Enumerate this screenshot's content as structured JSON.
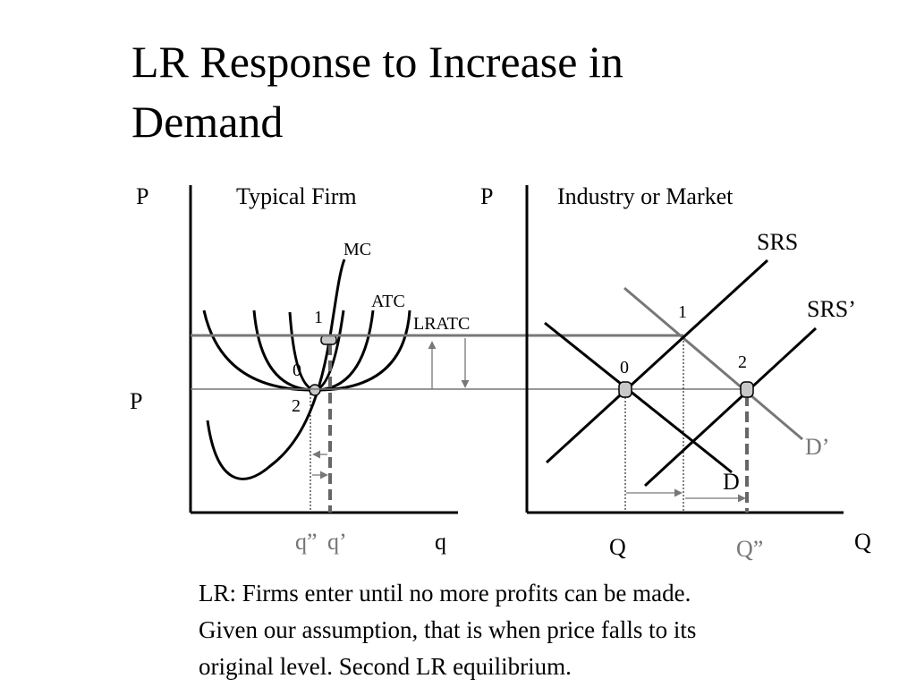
{
  "slide": {
    "title_line1": "LR Response to Increase in",
    "title_line2": "Demand",
    "caption_line1": "LR: Firms enter until no more profits can be made.",
    "caption_line2": "Given our assumption,  that is when price falls to its",
    "caption_line3": "original level.  Second LR equilibrium."
  },
  "firm_panel": {
    "heading": "Typical Firm",
    "y_axis_label": "P",
    "price_label": "P",
    "x_axis_label": "q",
    "q_double_prime": "q”",
    "q_prime": "q’",
    "mc_label": "MC",
    "atc_label": "ATC",
    "lratc_label": "LRATC",
    "point_0": "0",
    "point_1": "1",
    "point_2": "2"
  },
  "market_panel": {
    "heading": "Industry or Market",
    "y_axis_label": "P",
    "x_axis_label": "Q",
    "q_label": "Q",
    "q_double_prime": "Q”",
    "srs_label": "SRS",
    "srs_prime_label": "SRS’",
    "d_label": "D",
    "d_prime_label": "D’",
    "point_0": "0",
    "point_1": "1",
    "point_2": "2"
  },
  "colors": {
    "ink": "#000000",
    "shifted_curve": "#777777",
    "marker_fill": "#c8c8c8"
  }
}
